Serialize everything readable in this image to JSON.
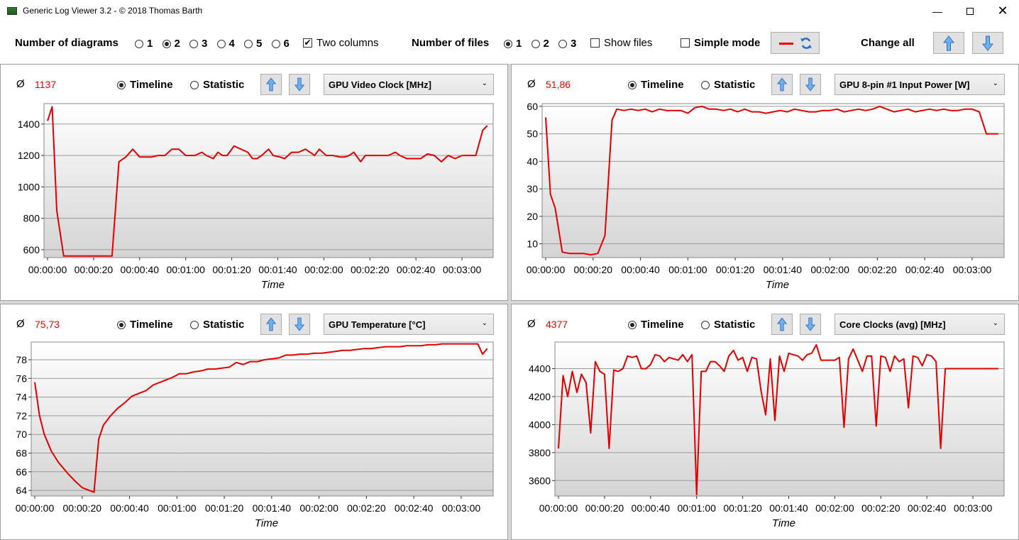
{
  "window": {
    "title": "Generic Log Viewer 3.2 - © 2018 Thomas Barth"
  },
  "toolbar": {
    "diagrams_label": "Number of diagrams",
    "diagram_options": [
      "1",
      "2",
      "3",
      "4",
      "5",
      "6"
    ],
    "diagram_selected": "2",
    "two_columns_label": "Two columns",
    "two_columns_checked": true,
    "files_label": "Number of files",
    "file_options": [
      "1",
      "2",
      "3"
    ],
    "file_selected": "1",
    "show_files_label": "Show files",
    "show_files_checked": false,
    "simple_mode_label": "Simple mode",
    "simple_mode_checked": false,
    "change_all_label": "Change all",
    "line_color": "#e00000"
  },
  "panels": [
    {
      "avg_symbol": "Ø",
      "avg_value": "1137",
      "timeline_label": "Timeline",
      "statistic_label": "Statistic",
      "mode": "Timeline",
      "sensor": "GPU Video Clock [MHz]"
    },
    {
      "avg_symbol": "Ø",
      "avg_value": "51,86",
      "timeline_label": "Timeline",
      "statistic_label": "Statistic",
      "mode": "Timeline",
      "sensor": "GPU 8-pin #1 Input Power [W]"
    },
    {
      "avg_symbol": "Ø",
      "avg_value": "75,73",
      "timeline_label": "Timeline",
      "statistic_label": "Statistic",
      "mode": "Timeline",
      "sensor": "GPU Temperature [°C]"
    },
    {
      "avg_symbol": "Ø",
      "avg_value": "4377",
      "timeline_label": "Timeline",
      "statistic_label": "Statistic",
      "mode": "Timeline",
      "sensor": "Core Clocks (avg) [MHz]"
    }
  ],
  "chart_data": [
    {
      "type": "line",
      "xlabel": "Time",
      "ylabel": "",
      "x_unit": "seconds",
      "xlim": [
        0,
        192
      ],
      "ylim": [
        550,
        1530
      ],
      "yticks": [
        600,
        800,
        1000,
        1200,
        1400
      ],
      "xticks": [
        "00:00:00",
        "00:00:20",
        "00:00:40",
        "00:01:00",
        "00:01:20",
        "00:01:40",
        "00:02:00",
        "00:02:20",
        "00:02:40",
        "00:03:00"
      ],
      "series": [
        {
          "color": "#e00000",
          "x": [
            0,
            2,
            4,
            7,
            10,
            13,
            16,
            19,
            22,
            25,
            28,
            31,
            34,
            37,
            40,
            42,
            45,
            48,
            51,
            54,
            57,
            60,
            62,
            64,
            67,
            69,
            72,
            74,
            76,
            78,
            81,
            84,
            87,
            89,
            91,
            93,
            96,
            98,
            101,
            103,
            106,
            109,
            112,
            114,
            116,
            118,
            121,
            124,
            127,
            129,
            131,
            133,
            136,
            138,
            140,
            142,
            145,
            148,
            151,
            153,
            156,
            159,
            162,
            165,
            168,
            171,
            174,
            177,
            180,
            183,
            186,
            189,
            191
          ],
          "y": [
            1420,
            1510,
            850,
            560,
            560,
            560,
            560,
            560,
            560,
            560,
            560,
            1160,
            1190,
            1240,
            1190,
            1190,
            1190,
            1200,
            1200,
            1240,
            1240,
            1200,
            1200,
            1200,
            1220,
            1200,
            1180,
            1220,
            1200,
            1200,
            1260,
            1240,
            1220,
            1180,
            1180,
            1200,
            1240,
            1200,
            1190,
            1180,
            1220,
            1220,
            1240,
            1220,
            1200,
            1240,
            1200,
            1200,
            1190,
            1190,
            1200,
            1220,
            1160,
            1200,
            1200,
            1200,
            1200,
            1200,
            1220,
            1200,
            1180,
            1180,
            1180,
            1210,
            1200,
            1160,
            1200,
            1180,
            1200,
            1200,
            1200,
            1360,
            1390
          ]
        }
      ]
    },
    {
      "type": "line",
      "xlabel": "Time",
      "ylabel": "",
      "x_unit": "seconds",
      "xlim": [
        0,
        192
      ],
      "ylim": [
        5,
        61
      ],
      "yticks": [
        10,
        20,
        30,
        40,
        50,
        60
      ],
      "xticks": [
        "00:00:00",
        "00:00:20",
        "00:00:40",
        "00:01:00",
        "00:01:20",
        "00:01:40",
        "00:02:00",
        "00:02:20",
        "00:02:40",
        "00:03:00"
      ],
      "series": [
        {
          "color": "#e00000",
          "x": [
            0,
            2,
            4,
            7,
            10,
            13,
            16,
            19,
            22,
            25,
            28,
            30,
            33,
            36,
            39,
            42,
            45,
            48,
            51,
            54,
            57,
            60,
            63,
            66,
            69,
            72,
            75,
            78,
            81,
            84,
            87,
            90,
            93,
            96,
            99,
            102,
            105,
            108,
            111,
            114,
            117,
            120,
            123,
            126,
            129,
            132,
            135,
            138,
            141,
            144,
            147,
            150,
            153,
            156,
            159,
            162,
            165,
            168,
            171,
            174,
            177,
            180,
            183,
            186,
            189,
            191
          ],
          "y": [
            56,
            28,
            23,
            7,
            6.5,
            6.5,
            6.5,
            6,
            6.5,
            13,
            55,
            59,
            58.5,
            59,
            58.5,
            59,
            58,
            59,
            58.5,
            58.5,
            58.5,
            57.5,
            59.5,
            60,
            59,
            59,
            58.5,
            59,
            58,
            59,
            58,
            58,
            57.5,
            58,
            58.5,
            58,
            59,
            58.5,
            58,
            58,
            58.5,
            58.5,
            59,
            58,
            58.5,
            59,
            58.5,
            59,
            60,
            59,
            58,
            58.5,
            59,
            58,
            58.5,
            59,
            58.5,
            59,
            58.5,
            58.5,
            59,
            59,
            58,
            50,
            50,
            50
          ]
        }
      ]
    },
    {
      "type": "line",
      "xlabel": "Time",
      "ylabel": "",
      "x_unit": "seconds",
      "xlim": [
        0,
        192
      ],
      "ylim": [
        63.4,
        79.9
      ],
      "yticks": [
        64,
        66,
        68,
        70,
        72,
        74,
        76,
        78
      ],
      "xticks": [
        "00:00:00",
        "00:00:20",
        "00:00:40",
        "00:01:00",
        "00:01:20",
        "00:01:40",
        "00:02:00",
        "00:02:20",
        "00:02:40",
        "00:03:00"
      ],
      "series": [
        {
          "color": "#e00000",
          "x": [
            0,
            2,
            4,
            7,
            10,
            14,
            17,
            20,
            23,
            25,
            27,
            29,
            32,
            35,
            38,
            41,
            44,
            47,
            50,
            52,
            55,
            58,
            61,
            64,
            67,
            70,
            73,
            76,
            79,
            82,
            85,
            88,
            91,
            94,
            97,
            100,
            103,
            106,
            109,
            112,
            115,
            118,
            121,
            124,
            127,
            130,
            133,
            136,
            139,
            142,
            145,
            148,
            151,
            154,
            157,
            160,
            163,
            166,
            169,
            172,
            175,
            178,
            181,
            184,
            187,
            189,
            191
          ],
          "y": [
            75.6,
            72,
            70,
            68.2,
            67,
            65.8,
            65,
            64.3,
            64,
            63.8,
            69.5,
            71,
            72,
            72.8,
            73.4,
            74.1,
            74.4,
            74.7,
            75.3,
            75.5,
            75.8,
            76.1,
            76.5,
            76.5,
            76.7,
            76.8,
            77,
            77,
            77.1,
            77.2,
            77.7,
            77.5,
            77.8,
            77.8,
            78,
            78.1,
            78.2,
            78.5,
            78.5,
            78.6,
            78.6,
            78.7,
            78.7,
            78.8,
            78.9,
            79,
            79,
            79.1,
            79.2,
            79.2,
            79.3,
            79.4,
            79.4,
            79.4,
            79.5,
            79.5,
            79.5,
            79.6,
            79.6,
            79.7,
            79.7,
            79.7,
            79.7,
            79.7,
            79.7,
            78.6,
            79.2
          ]
        }
      ]
    },
    {
      "type": "line",
      "xlabel": "Time",
      "ylabel": "",
      "x_unit": "seconds",
      "xlim": [
        0,
        192
      ],
      "ylim": [
        3490,
        4590
      ],
      "yticks": [
        3600,
        3800,
        4000,
        4200,
        4400
      ],
      "xticks": [
        "00:00:00",
        "00:00:20",
        "00:00:40",
        "00:01:00",
        "00:01:20",
        "00:01:40",
        "00:02:00",
        "00:02:20",
        "00:02:40",
        "00:03:00"
      ],
      "series": [
        {
          "color": "#e00000",
          "x": [
            0,
            2,
            4,
            6,
            8,
            10,
            12,
            14,
            16,
            18,
            20,
            22,
            24,
            26,
            28,
            30,
            32,
            34,
            36,
            38,
            40,
            42,
            44,
            46,
            48,
            50,
            52,
            54,
            56,
            58,
            60,
            62,
            64,
            66,
            68,
            70,
            72,
            74,
            76,
            78,
            80,
            82,
            84,
            86,
            88,
            90,
            92,
            94,
            96,
            98,
            100,
            102,
            104,
            106,
            108,
            110,
            112,
            114,
            116,
            118,
            120,
            122,
            124,
            126,
            128,
            130,
            132,
            134,
            136,
            138,
            140,
            142,
            144,
            146,
            148,
            150,
            152,
            154,
            156,
            158,
            160,
            162,
            164,
            166,
            168,
            170,
            172,
            174,
            176,
            178,
            180,
            182,
            184,
            186,
            188,
            190,
            191
          ],
          "y": [
            3830,
            4350,
            4200,
            4380,
            4230,
            4360,
            4300,
            3940,
            4450,
            4380,
            4360,
            3830,
            4390,
            4380,
            4400,
            4490,
            4480,
            4490,
            4400,
            4400,
            4430,
            4500,
            4490,
            4450,
            4480,
            4470,
            4460,
            4500,
            4450,
            4500,
            3500,
            4380,
            4380,
            4450,
            4450,
            4420,
            4380,
            4490,
            4530,
            4460,
            4480,
            4380,
            4480,
            4470,
            4240,
            4070,
            4470,
            4030,
            4490,
            4380,
            4510,
            4500,
            4490,
            4460,
            4500,
            4510,
            4570,
            4460,
            4460,
            4460,
            4460,
            4480,
            3980,
            4470,
            4540,
            4460,
            4380,
            4490,
            4490,
            3990,
            4490,
            4480,
            4380,
            4490,
            4450,
            4470,
            4120,
            4490,
            4480,
            4420,
            4500,
            4490,
            4450,
            3830,
            4400,
            4400,
            4400,
            4400,
            4400,
            4400,
            4400,
            4400,
            4400,
            4400,
            4400,
            4400,
            4400
          ]
        }
      ]
    }
  ]
}
